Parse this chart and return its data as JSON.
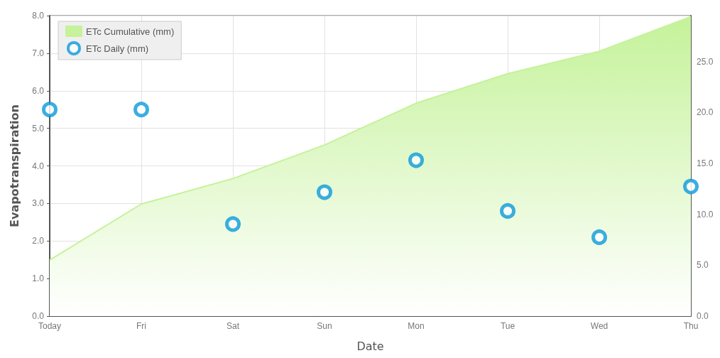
{
  "chart_data": {
    "type": "scatter",
    "xlabel": "Date",
    "ylabel": "Evapotranspiration",
    "categories": [
      "Today",
      "Fri",
      "Sat",
      "Sun",
      "Mon",
      "Tue",
      "Wed",
      "Thu"
    ],
    "series": [
      {
        "name": "ETc Cumulative (mm)",
        "type": "area",
        "axis": "y2",
        "color": "#c5f29a",
        "values": [
          5.5,
          11.0,
          13.5,
          16.8,
          20.9,
          23.8,
          26.0,
          29.4
        ]
      },
      {
        "name": "ETc Daily (mm)",
        "marker": "circle",
        "color": "#0a9ad9",
        "values": [
          5.5,
          5.5,
          2.45,
          3.3,
          4.15,
          2.8,
          2.1,
          3.45
        ]
      }
    ],
    "ylim": [
      0,
      8
    ],
    "yticks": [
      {
        "value": 0,
        "label": "0.0"
      },
      {
        "value": 1,
        "label": "1.0"
      },
      {
        "value": 2,
        "label": "2.0"
      },
      {
        "value": 3,
        "label": "3.0"
      },
      {
        "value": 4,
        "label": "4.0"
      },
      {
        "value": 5,
        "label": "5.0"
      },
      {
        "value": 6,
        "label": "6.0"
      },
      {
        "value": 7,
        "label": "7.0"
      },
      {
        "value": 8,
        "label": "8.0"
      }
    ],
    "y2lim": [
      0,
      29.5
    ],
    "y2ticks": [
      {
        "value": 0,
        "label": "0.0"
      },
      {
        "value": 5,
        "label": "5.0"
      },
      {
        "value": 10,
        "label": "10.0"
      },
      {
        "value": 15,
        "label": "15.0"
      },
      {
        "value": 20,
        "label": "20.0"
      },
      {
        "value": 25,
        "label": "25.0"
      }
    ],
    "grid": true,
    "legend": "top left"
  }
}
